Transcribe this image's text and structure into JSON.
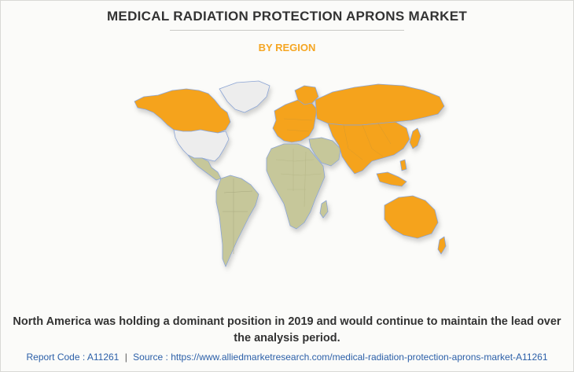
{
  "header": {
    "title": "MEDICAL RADIATION PROTECTION APRONS MARKET",
    "subtitle": "BY REGION"
  },
  "summary": "North America was holding a dominant position in 2019 and would continue to maintain the lead over the analysis period.",
  "footer": {
    "report_code": "Report Code : A11261",
    "separator": "|",
    "source": "Source : https://www.alliedmarketresearch.com/medical-radiation-protection-aprons-market-A11261"
  },
  "colors": {
    "title": "#333333",
    "subtitle": "#f5a623",
    "highlight_region": "#f5a31d",
    "north_america": "#ededed",
    "other_regions": "#c6c79a",
    "footer_text": "#2b5fa8",
    "water_border": "#8ba4d4"
  },
  "map": {
    "regions": [
      {
        "name": "North America",
        "color": "#ededed"
      },
      {
        "name": "Europe",
        "color": "#f5a31d"
      },
      {
        "name": "Asia-Pacific",
        "color": "#f5a31d"
      },
      {
        "name": "LAMEA",
        "color": "#c6c79a"
      }
    ]
  }
}
